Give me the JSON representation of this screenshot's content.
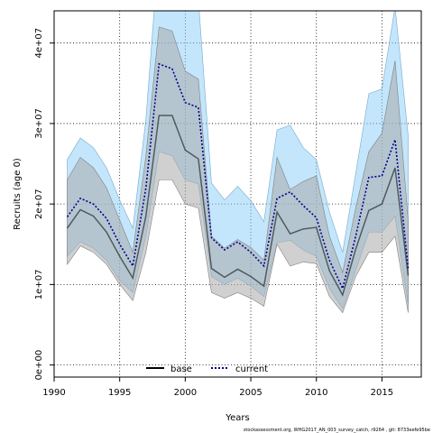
{
  "chart_data": {
    "type": "area",
    "xlabel": "Years",
    "ylabel": "Recruits (age 0)",
    "footnote": "stockassessment.org, WHG2017_AN_003_survey_catch, r9264 , git: 8733eefe95be",
    "xlim": [
      1990,
      2018
    ],
    "ylim": [
      -1500000,
      44000000
    ],
    "x_ticks": [
      1990,
      1995,
      2000,
      2005,
      2010,
      2015
    ],
    "x_tick_labels": [
      "1990",
      "1995",
      "2000",
      "2005",
      "2010",
      "2015"
    ],
    "y_ticks": [
      0,
      10000000,
      20000000,
      30000000,
      40000000
    ],
    "y_tick_labels": [
      "0e+00",
      "1e+07",
      "2e+07",
      "3e+07",
      "4e+07"
    ],
    "grid": "dotted",
    "legend_position": "bottom-center",
    "colors": {
      "base_band": "#aaaaaa",
      "current_band": "#87cefa",
      "base_line": "#000000",
      "current_line": "#00008b"
    },
    "x": [
      1991,
      1992,
      1993,
      1994,
      1995,
      1996,
      1997,
      1998,
      1999,
      2000,
      2001,
      2002,
      2003,
      2004,
      2005,
      2006,
      2007,
      2008,
      2009,
      2010,
      2011,
      2012,
      2013,
      2014,
      2015,
      2016,
      2017
    ],
    "series": [
      {
        "name": "base",
        "line_style": "solid",
        "values": [
          17000000,
          19300000,
          18500000,
          16500000,
          13500000,
          10800000,
          18500000,
          31000000,
          31000000,
          26700000,
          25600000,
          12000000,
          10900000,
          11900000,
          11000000,
          9800000,
          19000000,
          16300000,
          16900000,
          17100000,
          11700000,
          8700000,
          14400000,
          19200000,
          20000000,
          24500000,
          11100000
        ],
        "lower": [
          12500000,
          14800000,
          14000000,
          12500000,
          10000000,
          8000000,
          14000000,
          23000000,
          23000000,
          20000000,
          19500000,
          9000000,
          8300000,
          9000000,
          8300000,
          7300000,
          15000000,
          12300000,
          12800000,
          12600000,
          8500000,
          6500000,
          11000000,
          14000000,
          14000000,
          16000000,
          6500000
        ],
        "upper": [
          23000000,
          25800000,
          24500000,
          22000000,
          18000000,
          14000000,
          26000000,
          42000000,
          41500000,
          36500000,
          35500000,
          16000000,
          14500000,
          15600000,
          14600000,
          13000000,
          25800000,
          21800000,
          22800000,
          23500000,
          16000000,
          11500000,
          19500000,
          26500000,
          28800000,
          37800000,
          18000000
        ]
      },
      {
        "name": "current",
        "line_style": "dotted",
        "values": [
          18400000,
          20700000,
          20000000,
          18200000,
          15000000,
          12300000,
          22000000,
          37400000,
          36800000,
          32600000,
          32000000,
          15800000,
          14300000,
          15300000,
          14000000,
          12300000,
          20700000,
          21500000,
          19800000,
          18300000,
          13000000,
          9500000,
          16000000,
          23300000,
          23500000,
          28000000,
          12000000
        ],
        "lower": [
          13500000,
          15300000,
          14500000,
          13000000,
          10500000,
          9000000,
          16000000,
          26500000,
          26000000,
          23000000,
          22500000,
          11000000,
          10000000,
          10800000,
          9800000,
          8500000,
          15200000,
          15500000,
          14300000,
          13500000,
          9500000,
          7000000,
          11800000,
          16500000,
          16500000,
          18500000,
          7500000
        ],
        "upper": [
          25500000,
          28200000,
          27000000,
          24500000,
          20500000,
          17000000,
          30500000,
          52000000,
          52000000,
          46000000,
          45500000,
          22600000,
          20500000,
          22200000,
          20400000,
          17800000,
          29200000,
          29800000,
          27000000,
          25500000,
          19000000,
          14000000,
          23800000,
          33700000,
          34300000,
          44500000,
          28500000
        ]
      }
    ]
  }
}
